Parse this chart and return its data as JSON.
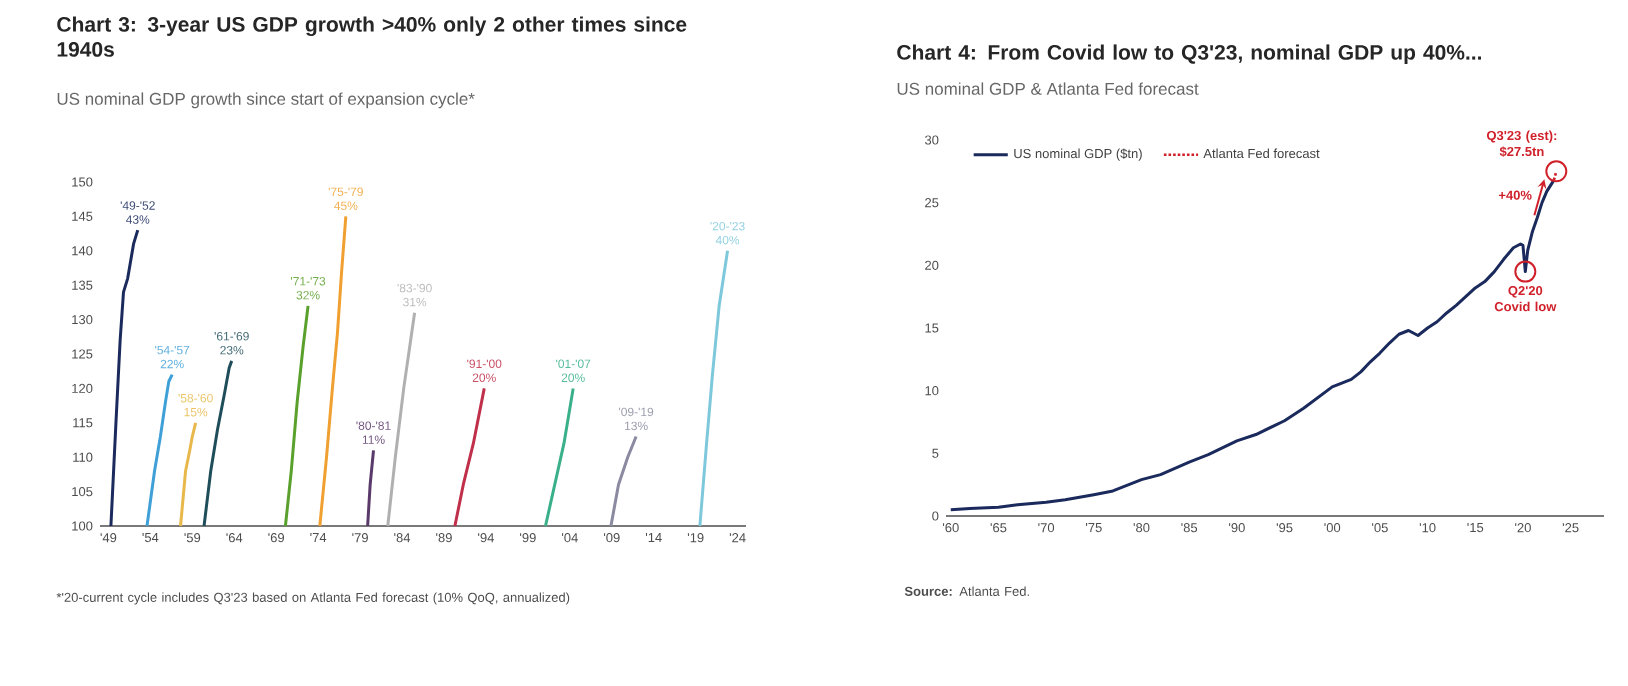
{
  "chart_data": [
    {
      "type": "line",
      "title": "Chart 3: 3-year US GDP growth >40% only 2 other times since 1940s",
      "subtitle": "US nominal GDP growth since start of expansion cycle*",
      "xlim": [
        1948,
        2025
      ],
      "ylim": [
        100,
        150
      ],
      "xticks": [
        {
          "value": 1949,
          "label": "'49"
        },
        {
          "value": 1954,
          "label": "'54"
        },
        {
          "value": 1959,
          "label": "'59"
        },
        {
          "value": 1964,
          "label": "'64"
        },
        {
          "value": 1969,
          "label": "'69"
        },
        {
          "value": 1974,
          "label": "'74"
        },
        {
          "value": 1979,
          "label": "'79"
        },
        {
          "value": 1984,
          "label": "'84"
        },
        {
          "value": 1989,
          "label": "'89"
        },
        {
          "value": 1994,
          "label": "'94"
        },
        {
          "value": 1999,
          "label": "'99"
        },
        {
          "value": 2004,
          "label": "'04"
        },
        {
          "value": 2009,
          "label": "'09"
        },
        {
          "value": 2014,
          "label": "'14"
        },
        {
          "value": 2019,
          "label": "'19"
        },
        {
          "value": 2024,
          "label": "'24"
        }
      ],
      "yticks": [
        100,
        105,
        110,
        115,
        120,
        125,
        130,
        135,
        140,
        145,
        150
      ],
      "series": [
        {
          "color": "#1b2a5c",
          "x": [
            1949.3,
            1949.9,
            1950.4,
            1950.8,
            1951.3,
            1952.0,
            1952.5
          ],
          "values": [
            100,
            115,
            127,
            134,
            136,
            141,
            143
          ]
        },
        {
          "color": "#3fa0d8",
          "x": [
            1953.6,
            1954.5,
            1955.2,
            1955.8,
            1956.2,
            1956.6
          ],
          "values": [
            100,
            108,
            113,
            118,
            121,
            122
          ]
        },
        {
          "color": "#e8b84a",
          "x": [
            1957.6,
            1958.2,
            1958.7,
            1959.0,
            1959.4
          ],
          "values": [
            100,
            108,
            111,
            113,
            115
          ]
        },
        {
          "color": "#1f4e5a",
          "x": [
            1960.4,
            1961.2,
            1962.0,
            1962.8,
            1963.4,
            1963.7
          ],
          "values": [
            100,
            108,
            114,
            119,
            123,
            124
          ]
        },
        {
          "color": "#5aa02c",
          "x": [
            1970.1,
            1970.8,
            1971.5,
            1972.2,
            1972.8
          ],
          "values": [
            100,
            108,
            118,
            126,
            132
          ]
        },
        {
          "color": "#f0a030",
          "x": [
            1974.2,
            1975.0,
            1975.7,
            1976.3,
            1976.8,
            1977.3
          ],
          "values": [
            100,
            110,
            120,
            128,
            137,
            145
          ]
        },
        {
          "color": "#5a3a6a",
          "x": [
            1979.9,
            1980.2,
            1980.6
          ],
          "values": [
            100,
            106,
            111
          ]
        },
        {
          "color": "#b0b0b0",
          "x": [
            1982.3,
            1983.2,
            1984.2,
            1985.5
          ],
          "values": [
            100,
            110,
            120,
            131
          ]
        },
        {
          "color": "#c0304a",
          "x": [
            1990.3,
            1991.3,
            1992.5,
            1993.8
          ],
          "values": [
            100,
            106,
            112,
            120
          ]
        },
        {
          "color": "#3ab08a",
          "x": [
            2001.1,
            2002.2,
            2003.3,
            2004.4
          ],
          "values": [
            100,
            106,
            112,
            120
          ]
        },
        {
          "color": "#8a8aa0",
          "x": [
            2008.9,
            2009.8,
            2010.9,
            2011.9
          ],
          "values": [
            100,
            106,
            110,
            113
          ]
        },
        {
          "color": "#7ec8dc",
          "x": [
            2019.5,
            2020.3,
            2021.0,
            2021.8,
            2022.8
          ],
          "values": [
            100,
            112,
            122,
            132,
            140
          ]
        }
      ],
      "annotations": [
        {
          "text": "'49-'52 43%",
          "x": 1952.5,
          "y": 143
        },
        {
          "text": "'54-'57 22%",
          "x": 1956.6,
          "y": 122
        },
        {
          "text": "'58-'60 15%",
          "x": 1959.4,
          "y": 115
        },
        {
          "text": "'61-'69 23%",
          "x": 1963.7,
          "y": 124
        },
        {
          "text": "'71-'73 32%",
          "x": 1972.8,
          "y": 132
        },
        {
          "text": "'75-'79 45%",
          "x": 1977.3,
          "y": 145
        },
        {
          "text": "'80-'81 11%",
          "x": 1980.6,
          "y": 111
        },
        {
          "text": "'83-'90 31%",
          "x": 1985.5,
          "y": 131
        },
        {
          "text": "'91-'00 20%",
          "x": 1993.8,
          "y": 120
        },
        {
          "text": "'01-'07 20%",
          "x": 2004.4,
          "y": 120
        },
        {
          "text": "'09-'19 13%",
          "x": 2011.9,
          "y": 113
        },
        {
          "text": "'20-'23 40%",
          "x": 2022.8,
          "y": 140
        },
        "*'20-current cycle includes Q3'23 based on Atlanta Fed forecast (10% QoQ, annualized)"
      ]
    },
    {
      "type": "line",
      "title": "Chart 4: From Covid low to Q3'23, nominal GDP up 40%...",
      "subtitle": "US nominal GDP & Atlanta Fed forecast",
      "xlim": [
        1959.5,
        2028.5
      ],
      "ylim": [
        0,
        30
      ],
      "xticks": [
        {
          "value": 1960,
          "label": "'60"
        },
        {
          "value": 1965,
          "label": "'65"
        },
        {
          "value": 1970,
          "label": "'70"
        },
        {
          "value": 1975,
          "label": "'75"
        },
        {
          "value": 1980,
          "label": "'80"
        },
        {
          "value": 1985,
          "label": "'85"
        },
        {
          "value": 1990,
          "label": "'90"
        },
        {
          "value": 1995,
          "label": "'95"
        },
        {
          "value": 2000,
          "label": "'00"
        },
        {
          "value": 2005,
          "label": "'05"
        },
        {
          "value": 2010,
          "label": "'10"
        },
        {
          "value": 2015,
          "label": "'15"
        },
        {
          "value": 2020,
          "label": "'20"
        },
        {
          "value": 2025,
          "label": "'25"
        }
      ],
      "yticks": [
        0,
        5,
        10,
        15,
        20,
        25,
        30
      ],
      "legend": "top left",
      "series": [
        {
          "name": "US nominal GDP ($tn)",
          "color": "#1b2a5c",
          "line_style": "solid",
          "x": [
            1960,
            1962,
            1965,
            1967,
            1970,
            1972,
            1975,
            1977,
            1980,
            1982,
            1985,
            1987,
            1990,
            1992,
            1995,
            1997,
            2000,
            2001,
            2002,
            2003,
            2004,
            2005,
            2006,
            2007,
            2008,
            2009,
            2010,
            2011,
            2012,
            2013,
            2014,
            2015,
            2016,
            2017,
            2018,
            2019,
            2019.75,
            2020.0,
            2020.25,
            2020.5,
            2021.0,
            2021.5,
            2022.0,
            2022.5,
            2023.0,
            2023.25
          ],
          "values": [
            0.5,
            0.6,
            0.7,
            0.9,
            1.1,
            1.3,
            1.7,
            2.0,
            2.9,
            3.3,
            4.3,
            4.9,
            6.0,
            6.5,
            7.6,
            8.6,
            10.3,
            10.6,
            10.9,
            11.5,
            12.3,
            13.0,
            13.8,
            14.5,
            14.8,
            14.4,
            15.0,
            15.5,
            16.2,
            16.8,
            17.5,
            18.2,
            18.7,
            19.5,
            20.5,
            21.4,
            21.7,
            21.6,
            19.5,
            21.2,
            22.7,
            23.8,
            25.0,
            25.9,
            26.5,
            26.8
          ]
        },
        {
          "name": "Atlanta Fed forecast",
          "color": "#d0202a",
          "line_style": "dotted",
          "x": [
            2023.25,
            2023.5
          ],
          "values": [
            26.8,
            27.5
          ]
        }
      ],
      "annotations": [
        {
          "text": "Q3'23 (est): $27.5tn",
          "x": 2023.5,
          "y": 27.5
        },
        {
          "text": "+40%",
          "x": 2021.2,
          "y": 24.0
        },
        {
          "text": "Q2'20 Covid low",
          "x": 2020.25,
          "y": 19.5
        },
        "**Source:** Atlanta Fed."
      ]
    }
  ]
}
